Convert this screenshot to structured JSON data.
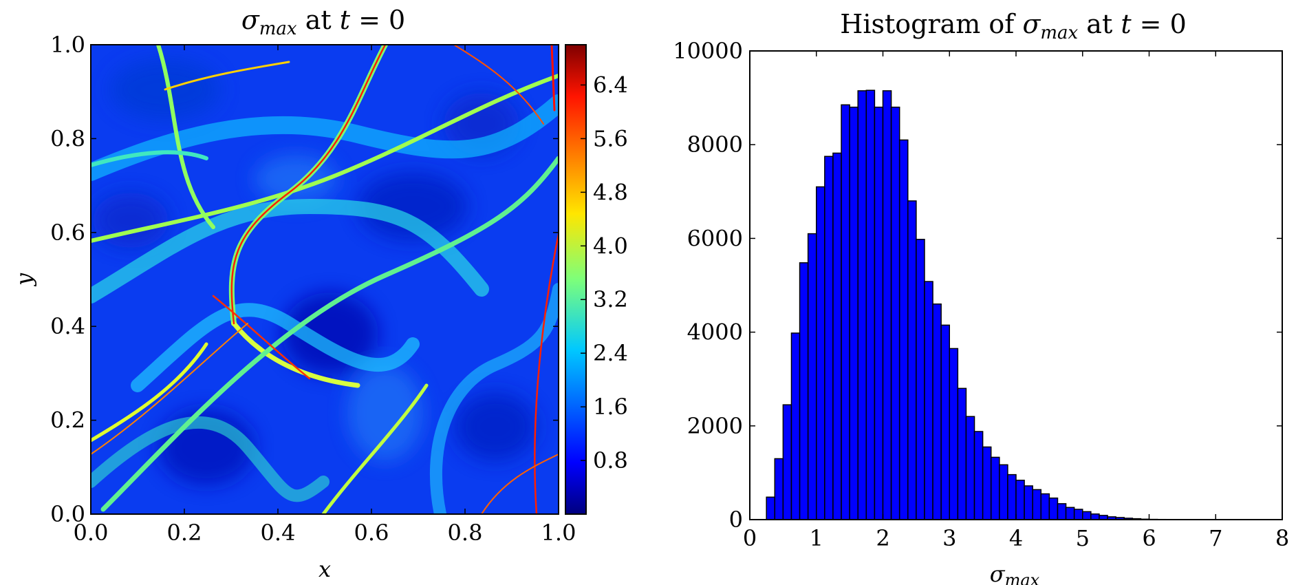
{
  "chart_data": [
    {
      "type": "heatmap",
      "title_parts": {
        "sym": "σ",
        "sub": "max",
        "mid": " at ",
        "var": "t",
        "rest": " = 0"
      },
      "xlabel": "x",
      "ylabel": "y",
      "xlim": [
        0.0,
        1.0
      ],
      "ylim": [
        0.0,
        1.0
      ],
      "xticks": [
        "0.0",
        "0.2",
        "0.4",
        "0.6",
        "0.8",
        "1.0"
      ],
      "yticks": [
        "0.0",
        "0.2",
        "0.4",
        "0.6",
        "0.8",
        "1.0"
      ],
      "colormap": "jet",
      "colorbar": {
        "range": [
          0.0,
          7.0
        ],
        "ticks": [
          "0.8",
          "1.6",
          "2.4",
          "3.2",
          "4.0",
          "4.8",
          "5.6",
          "6.4"
        ],
        "tick_values": [
          0.8,
          1.6,
          2.4,
          3.2,
          4.0,
          4.8,
          5.6,
          6.4
        ]
      },
      "field_description_note_excluded": true
    },
    {
      "type": "bar",
      "title_parts": {
        "pre": "Histogram of ",
        "sym": "σ",
        "sub": "max",
        "mid": " at ",
        "var": "t",
        "rest": " = 0"
      },
      "xlabel_parts": {
        "sym": "σ",
        "sub": "max"
      },
      "xlim": [
        0,
        8
      ],
      "ylim": [
        0,
        10000
      ],
      "xticks": [
        "0",
        "1",
        "2",
        "3",
        "4",
        "5",
        "6",
        "7",
        "8"
      ],
      "yticks": [
        "0",
        "2000",
        "4000",
        "6000",
        "8000",
        "10000"
      ],
      "bin_start": 0.25,
      "bin_width": 0.125,
      "values": [
        480,
        1300,
        2450,
        3980,
        5480,
        6100,
        7100,
        7750,
        7820,
        8850,
        8800,
        9150,
        9160,
        8800,
        9150,
        8800,
        8100,
        6800,
        5980,
        5080,
        4600,
        4150,
        3650,
        2800,
        2200,
        1880,
        1550,
        1330,
        1170,
        960,
        840,
        720,
        640,
        550,
        460,
        340,
        260,
        220,
        170,
        120,
        90,
        60,
        45,
        30,
        20,
        10,
        6,
        4
      ],
      "bar_color": "#0000ff",
      "grid": false
    }
  ]
}
